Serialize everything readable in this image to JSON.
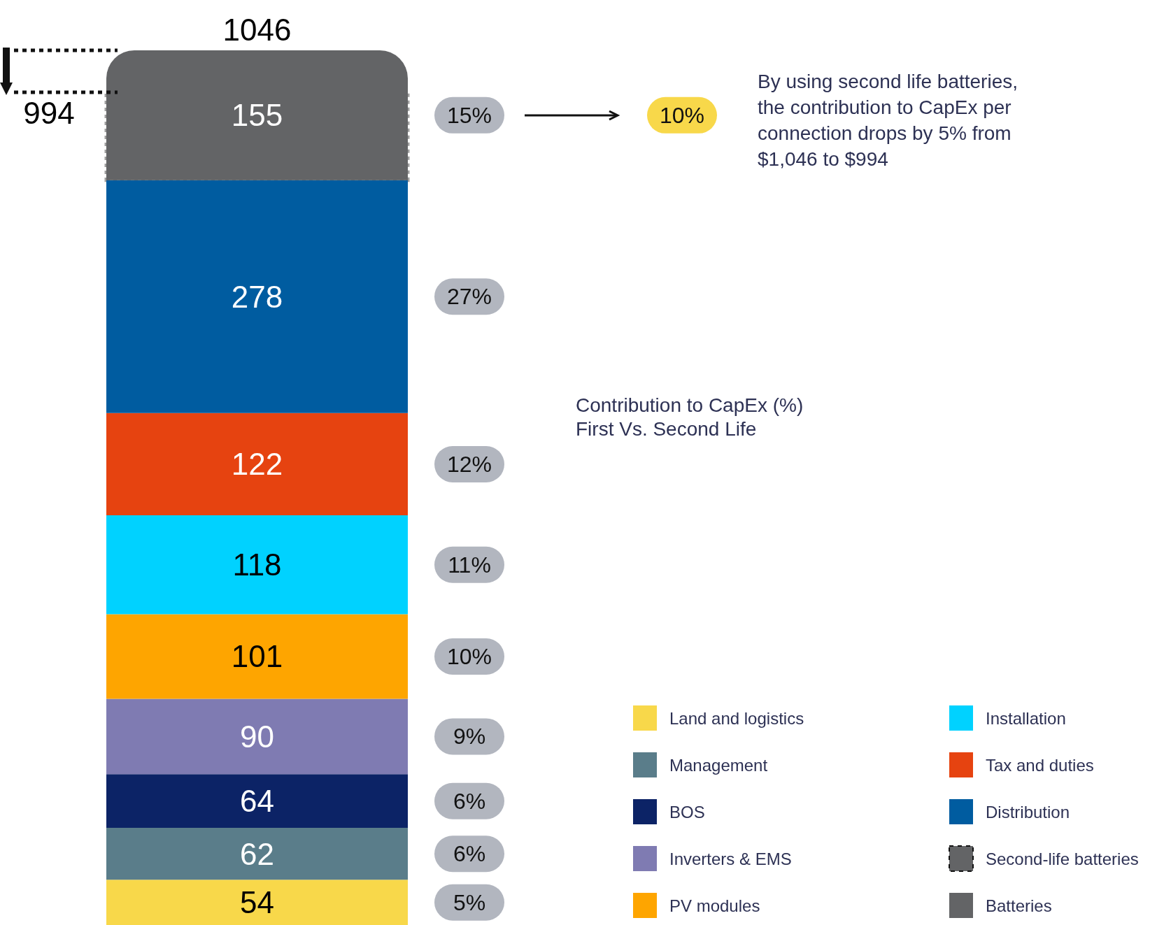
{
  "chart_data": {
    "type": "bar",
    "title": "Contribution to CapEx (%)",
    "subtitle": "First Vs. Second Life",
    "categories": [
      null
    ],
    "stacked": true,
    "data_labels": true,
    "tick_labels": false,
    "legend": "bottom right",
    "totals": [
      "1046"
    ],
    "series": [
      {
        "name": "Land and logistics",
        "color": "#f8d84a",
        "values": [
          54
        ]
      },
      {
        "name": "Management",
        "color": "#5a7d8a",
        "values": [
          62
        ]
      },
      {
        "name": "BOS",
        "color": "#0c2366",
        "values": [
          64
        ]
      },
      {
        "name": "Inverters & EMS",
        "color": "#7f7bb2",
        "values": [
          90
        ]
      },
      {
        "name": "PV modules",
        "color": "#fea500",
        "values": [
          101
        ]
      },
      {
        "name": "Installation",
        "color": "#00d2ff",
        "values": [
          118
        ]
      },
      {
        "name": "Tax and duties",
        "color": "#e64310",
        "values": [
          122
        ]
      },
      {
        "name": "Distribution",
        "color": "#005ca0",
        "values": [
          278
        ]
      },
      {
        "name": "Batteries",
        "color": "#636466",
        "values": [
          155
        ]
      }
    ],
    "bands": [
      {
        "axis": "y",
        "from": 889,
        "to": 994,
        "label": "Second-life batteries",
        "color": "#636466"
      }
    ],
    "ref_lines": [
      {
        "axis": "y",
        "value": 994,
        "label": "994",
        "line_style": "dotted"
      }
    ],
    "annotations": [
      "5%",
      "6%",
      "6%",
      "9%",
      "10%",
      "11%",
      "12%",
      "27%",
      "15%",
      "10%",
      "By using second life batteries, the contribution to CapEx per connection drops by 5% from $1,046 to $994"
    ]
  }
}
